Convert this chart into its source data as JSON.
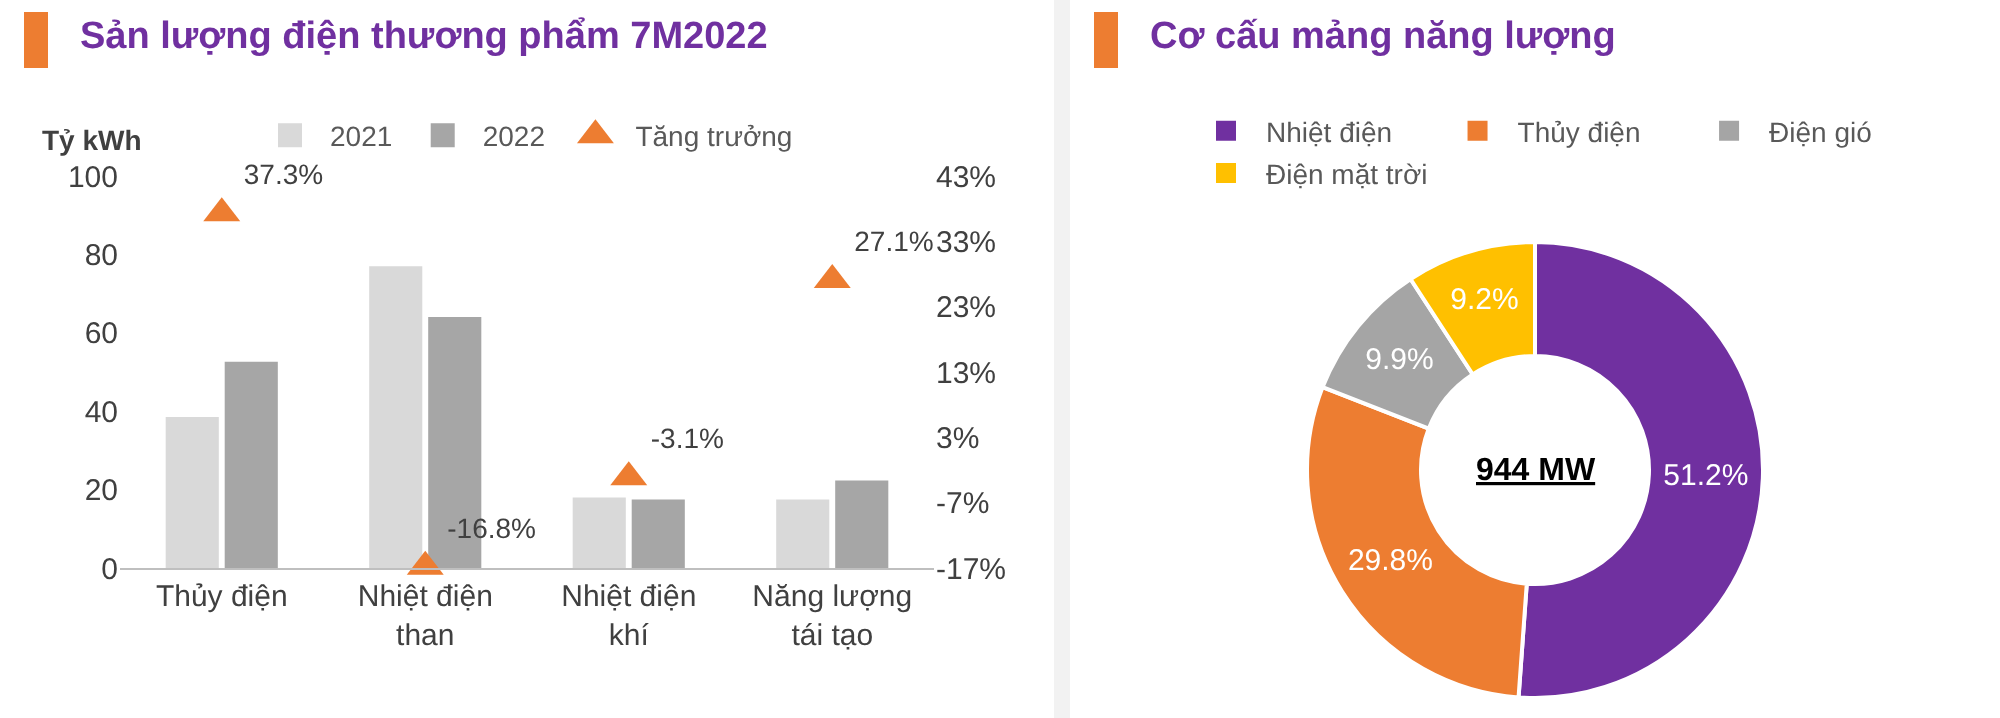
{
  "chart_data": [
    {
      "type": "bar",
      "title": "Sản lượng điện thương phẩm 7M2022",
      "ylabel": "Tỷ kWh",
      "categories": [
        "Thủy điện",
        "Nhiệt điện than",
        "Nhiệt điện khí",
        "Năng lượng tái tạo"
      ],
      "series": [
        {
          "name": "2021",
          "color": "#d9d9d9",
          "values": [
            38.5,
            77,
            18,
            17.5
          ]
        },
        {
          "name": "2022",
          "color": "#a6a6a6",
          "values": [
            52.6,
            64,
            17.5,
            22.3
          ]
        },
        {
          "name": "Tăng trưởng",
          "type": "scatter",
          "axis": "y2",
          "color": "#ed7d31",
          "marker": "triangle",
          "values": [
            37.3,
            -16.8,
            -3.1,
            27.1
          ],
          "value_labels": [
            "37.3%",
            "-16.8%",
            "-3.1%",
            "27.1%"
          ]
        }
      ],
      "ylim": [
        0,
        100
      ],
      "yticks": [
        0,
        20,
        40,
        60,
        80,
        100
      ],
      "y2lim": [
        -17,
        43
      ],
      "y2ticks": [
        {
          "value": -17,
          "label": "-17%"
        },
        {
          "value": -7,
          "label": "-7%"
        },
        {
          "value": 3,
          "label": "3%"
        },
        {
          "value": 13,
          "label": "13%"
        },
        {
          "value": 23,
          "label": "23%"
        },
        {
          "value": 33,
          "label": "33%"
        },
        {
          "value": 43,
          "label": "43%"
        }
      ],
      "grid": false,
      "legend": "top"
    },
    {
      "type": "donut",
      "title": "Cơ cấu mảng năng lượng",
      "categories": [
        "Nhiệt điện",
        "Thủy điện",
        "Điện gió",
        "Điện mặt trời"
      ],
      "values": [
        51.2,
        29.8,
        9.9,
        9.2
      ],
      "value_labels": [
        "51.2%",
        "29.8%",
        "9.9%",
        "9.2%"
      ],
      "colors": [
        "#7030a0",
        "#ed7d31",
        "#a5a5a5",
        "#ffc000"
      ],
      "annotations": [
        "944 MW"
      ],
      "legend": "top"
    }
  ]
}
